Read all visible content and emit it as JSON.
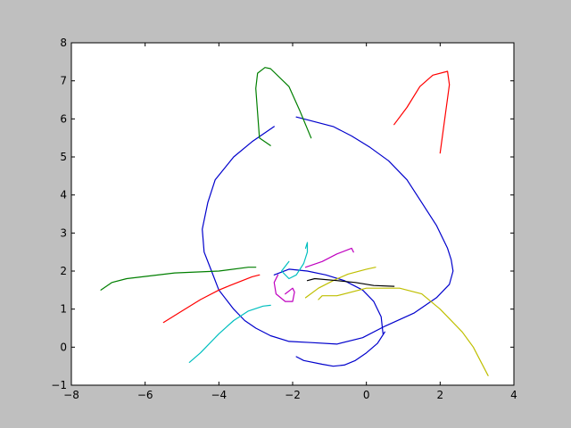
{
  "chart_data": {
    "type": "line",
    "title": "",
    "xlabel": "",
    "ylabel": "",
    "xlim": [
      -8,
      4
    ],
    "ylim": [
      -1,
      8
    ],
    "grid": false,
    "legend": "none",
    "xticks": [
      -8,
      -6,
      -4,
      -2,
      0,
      2,
      4
    ],
    "yticks": [
      -1,
      0,
      1,
      2,
      3,
      4,
      5,
      6,
      7,
      8
    ],
    "xtick_labels": [
      "−8",
      "−6",
      "−4",
      "−2",
      "0",
      "2",
      "4"
    ],
    "ytick_labels": [
      "−1",
      "0",
      "1",
      "2",
      "3",
      "4",
      "5",
      "6",
      "7",
      "8"
    ],
    "series": [
      {
        "color": "#0000cc",
        "x": [
          -2.5,
          -3.1,
          -3.6,
          -4.1,
          -4.3,
          -4.45,
          -4.4,
          -4.2,
          -4.0,
          -3.6,
          -3.3,
          -3.0,
          -2.6,
          -2.1,
          -1.5,
          -0.8,
          -0.1,
          0.5,
          1.3,
          1.9,
          2.25,
          2.35,
          2.3,
          2.2,
          1.9,
          1.5,
          1.1,
          0.6,
          0.1,
          -0.4,
          -0.9,
          -1.7,
          -1.9
        ],
        "y": [
          5.8,
          5.4,
          5.0,
          4.4,
          3.8,
          3.1,
          2.5,
          2.0,
          1.5,
          1.0,
          0.7,
          0.5,
          0.3,
          0.15,
          0.12,
          0.08,
          0.25,
          0.55,
          0.9,
          1.3,
          1.65,
          2.0,
          2.3,
          2.6,
          3.2,
          3.8,
          4.4,
          4.9,
          5.25,
          5.55,
          5.8,
          6.0,
          6.05
        ]
      },
      {
        "color": "#0000cc",
        "x": [
          -1.9,
          -1.7,
          -1.2,
          -0.9,
          -0.6,
          -0.3,
          0.0,
          0.3,
          0.5
        ],
        "y": [
          -0.25,
          -0.35,
          -0.45,
          -0.5,
          -0.47,
          -0.35,
          -0.15,
          0.1,
          0.4
        ]
      },
      {
        "color": "#0000cc",
        "x": [
          0.45,
          0.4,
          0.2,
          -0.1,
          -0.6,
          -1.1,
          -1.6,
          -2.1,
          -2.5
        ],
        "y": [
          0.35,
          0.8,
          1.2,
          1.5,
          1.75,
          1.9,
          2.0,
          2.05,
          1.9
        ]
      },
      {
        "color": "#007f00",
        "x": [
          -3.0,
          -3.2,
          -4.0,
          -5.2,
          -6.5,
          -6.9,
          -7.2
        ],
        "y": [
          2.1,
          2.1,
          2.0,
          1.95,
          1.8,
          1.7,
          1.5
        ]
      },
      {
        "color": "#007f00",
        "x": [
          -2.6,
          -2.9,
          -3.0,
          -2.95,
          -2.75,
          -2.6,
          -2.1,
          -1.8,
          -1.5
        ],
        "y": [
          5.3,
          5.5,
          6.8,
          7.2,
          7.35,
          7.32,
          6.85,
          6.2,
          5.5
        ]
      },
      {
        "color": "#ff0000",
        "x": [
          -5.5,
          -5.0,
          -4.5,
          -4.0,
          -3.7,
          -3.1,
          -2.9
        ],
        "y": [
          0.65,
          0.95,
          1.25,
          1.5,
          1.62,
          1.85,
          1.9
        ]
      },
      {
        "color": "#ff0000",
        "x": [
          0.75,
          1.1,
          1.45,
          1.8,
          2.2,
          2.25,
          2.0
        ],
        "y": [
          5.85,
          6.3,
          6.85,
          7.15,
          7.25,
          6.9,
          5.1
        ]
      },
      {
        "color": "#00bfbf",
        "x": [
          -4.8,
          -4.5,
          -4.0,
          -3.6,
          -3.2,
          -2.8,
          -2.6
        ],
        "y": [
          -0.4,
          -0.15,
          0.35,
          0.7,
          0.95,
          1.08,
          1.1
        ]
      },
      {
        "color": "#00bfbf",
        "x": [
          -2.1,
          -2.3,
          -2.1,
          -1.9,
          -1.7,
          -1.6,
          -1.6,
          -1.65
        ],
        "y": [
          2.25,
          2.0,
          1.8,
          1.9,
          2.2,
          2.5,
          2.75,
          2.6
        ]
      },
      {
        "color": "#bf00bf",
        "x": [
          -2.4,
          -2.5,
          -2.45,
          -2.2,
          -2.0,
          -1.95,
          -2.0,
          -2.2
        ],
        "y": [
          1.9,
          1.7,
          1.4,
          1.2,
          1.2,
          1.45,
          1.55,
          1.4
        ]
      },
      {
        "color": "#bf00bf",
        "x": [
          -1.65,
          -1.2,
          -0.8,
          -0.4,
          -0.35
        ],
        "y": [
          2.1,
          2.25,
          2.45,
          2.6,
          2.5
        ]
      },
      {
        "color": "#bfbf00",
        "x": [
          -1.65,
          -1.3,
          -0.9,
          -0.5,
          0.0,
          0.25
        ],
        "y": [
          1.3,
          1.55,
          1.75,
          1.92,
          2.05,
          2.1
        ]
      },
      {
        "color": "#bfbf00",
        "x": [
          -1.3,
          -1.2,
          -0.8,
          0.0,
          0.9,
          1.5,
          2.0,
          2.6,
          2.9,
          3.3
        ],
        "y": [
          1.25,
          1.35,
          1.35,
          1.55,
          1.55,
          1.4,
          1.0,
          0.4,
          0.0,
          -0.75
        ]
      },
      {
        "color": "#000000",
        "x": [
          -1.6,
          -1.4,
          -0.8,
          -0.3,
          0.2,
          0.75
        ],
        "y": [
          1.75,
          1.8,
          1.75,
          1.7,
          1.62,
          1.6
        ]
      }
    ]
  }
}
